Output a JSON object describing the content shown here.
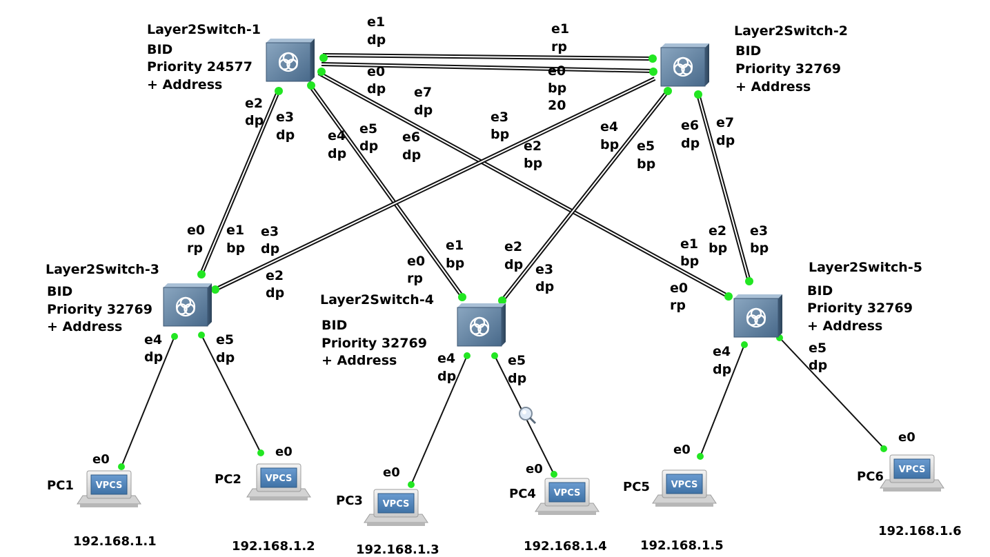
{
  "colors": {
    "port_dot": "#22e622",
    "link": "#111111",
    "switch_face": "#5d7f9f",
    "vpcs_screen": "#4d84b8"
  },
  "switches": [
    {
      "id": "sw1",
      "name": "Layer2Switch-1",
      "bid": "BID",
      "priority": "Priority 24577",
      "address": "+ Address"
    },
    {
      "id": "sw2",
      "name": "Layer2Switch-2",
      "bid": "BID",
      "priority": "Priority 32769",
      "address": "+ Address"
    },
    {
      "id": "sw3",
      "name": "Layer2Switch-3",
      "bid": "BID",
      "priority": "Priority 32769",
      "address": "+ Address"
    },
    {
      "id": "sw4",
      "name": "Layer2Switch-4",
      "bid": "BID",
      "priority": "Priority 32769",
      "address": "+ Address"
    },
    {
      "id": "sw5",
      "name": "Layer2Switch-5",
      "bid": "BID",
      "priority": "Priority 32769",
      "address": "+ Address"
    }
  ],
  "pcs": [
    {
      "id": "pc1",
      "name": "PC1",
      "ip": "192.168.1.1",
      "port": "e0",
      "screen": "VPCS"
    },
    {
      "id": "pc2",
      "name": "PC2",
      "ip": "192.168.1.2",
      "port": "e0",
      "screen": "VPCS"
    },
    {
      "id": "pc3",
      "name": "PC3",
      "ip": "192.168.1.3",
      "port": "e0",
      "screen": "VPCS"
    },
    {
      "id": "pc4",
      "name": "PC4",
      "ip": "192.168.1.4",
      "port": "e0",
      "screen": "VPCS"
    },
    {
      "id": "pc5",
      "name": "PC5",
      "ip": "192.168.1.5",
      "port": "e0",
      "screen": "VPCS"
    },
    {
      "id": "pc6",
      "name": "PC6",
      "ip": "192.168.1.6",
      "port": "e0",
      "screen": "VPCS"
    }
  ],
  "trunk_links": [
    {
      "id": "sw1-sw2-e1",
      "a": "sw1",
      "b": "sw2"
    },
    {
      "id": "sw1-sw2-e0",
      "a": "sw1",
      "b": "sw2"
    },
    {
      "id": "sw1-sw3",
      "a": "sw1",
      "b": "sw3"
    },
    {
      "id": "sw1-sw4",
      "a": "sw1",
      "b": "sw4"
    },
    {
      "id": "sw1-sw5",
      "a": "sw1",
      "b": "sw5"
    },
    {
      "id": "sw2-sw3",
      "a": "sw2",
      "b": "sw3"
    },
    {
      "id": "sw2-sw4",
      "a": "sw2",
      "b": "sw4"
    },
    {
      "id": "sw2-sw5",
      "a": "sw2",
      "b": "sw5"
    }
  ],
  "access_links": [
    {
      "id": "sw3-pc1",
      "a": "sw3",
      "b": "pc1"
    },
    {
      "id": "sw3-pc2",
      "a": "sw3",
      "b": "pc2"
    },
    {
      "id": "sw4-pc3",
      "a": "sw4",
      "b": "pc3"
    },
    {
      "id": "sw4-pc4",
      "a": "sw4",
      "b": "pc4"
    },
    {
      "id": "sw5-pc5",
      "a": "sw5",
      "b": "pc5"
    },
    {
      "id": "sw5-pc6",
      "a": "sw5",
      "b": "pc6"
    }
  ],
  "port_labels": [
    {
      "port": "e1",
      "role": "dp"
    },
    {
      "port": "e0",
      "role": "dp"
    },
    {
      "port": "e2",
      "role": "dp"
    },
    {
      "port": "e3",
      "role": "dp"
    },
    {
      "port": "e4",
      "role": "dp"
    },
    {
      "port": "e5",
      "role": "dp"
    },
    {
      "port": "e6",
      "role": "dp"
    },
    {
      "port": "e7",
      "role": "dp"
    },
    {
      "port": "e1",
      "role": "rp"
    },
    {
      "port": "e0",
      "role": "bp",
      "extra": "20"
    },
    {
      "port": "e3",
      "role": "bp"
    },
    {
      "port": "e2",
      "role": "bp"
    },
    {
      "port": "e4",
      "role": "bp"
    },
    {
      "port": "e5",
      "role": "bp"
    },
    {
      "port": "e6",
      "role": "dp"
    },
    {
      "port": "e7",
      "role": "dp"
    },
    {
      "port": "e0",
      "role": "rp"
    },
    {
      "port": "e1",
      "role": "bp"
    },
    {
      "port": "e3",
      "role": "dp"
    },
    {
      "port": "e2",
      "role": "dp"
    },
    {
      "port": "e4",
      "role": "dp"
    },
    {
      "port": "e5",
      "role": "dp"
    },
    {
      "port": "e1",
      "role": "bp"
    },
    {
      "port": "e0",
      "role": "rp"
    },
    {
      "port": "e2",
      "role": "dp"
    },
    {
      "port": "e3",
      "role": "dp"
    },
    {
      "port": "e4",
      "role": "dp"
    },
    {
      "port": "e5",
      "role": "dp"
    },
    {
      "port": "e2",
      "role": "bp"
    },
    {
      "port": "e3",
      "role": "bp"
    },
    {
      "port": "e1",
      "role": "bp"
    },
    {
      "port": "e0",
      "role": "rp"
    },
    {
      "port": "e4",
      "role": "dp"
    },
    {
      "port": "e5",
      "role": "dp"
    }
  ]
}
